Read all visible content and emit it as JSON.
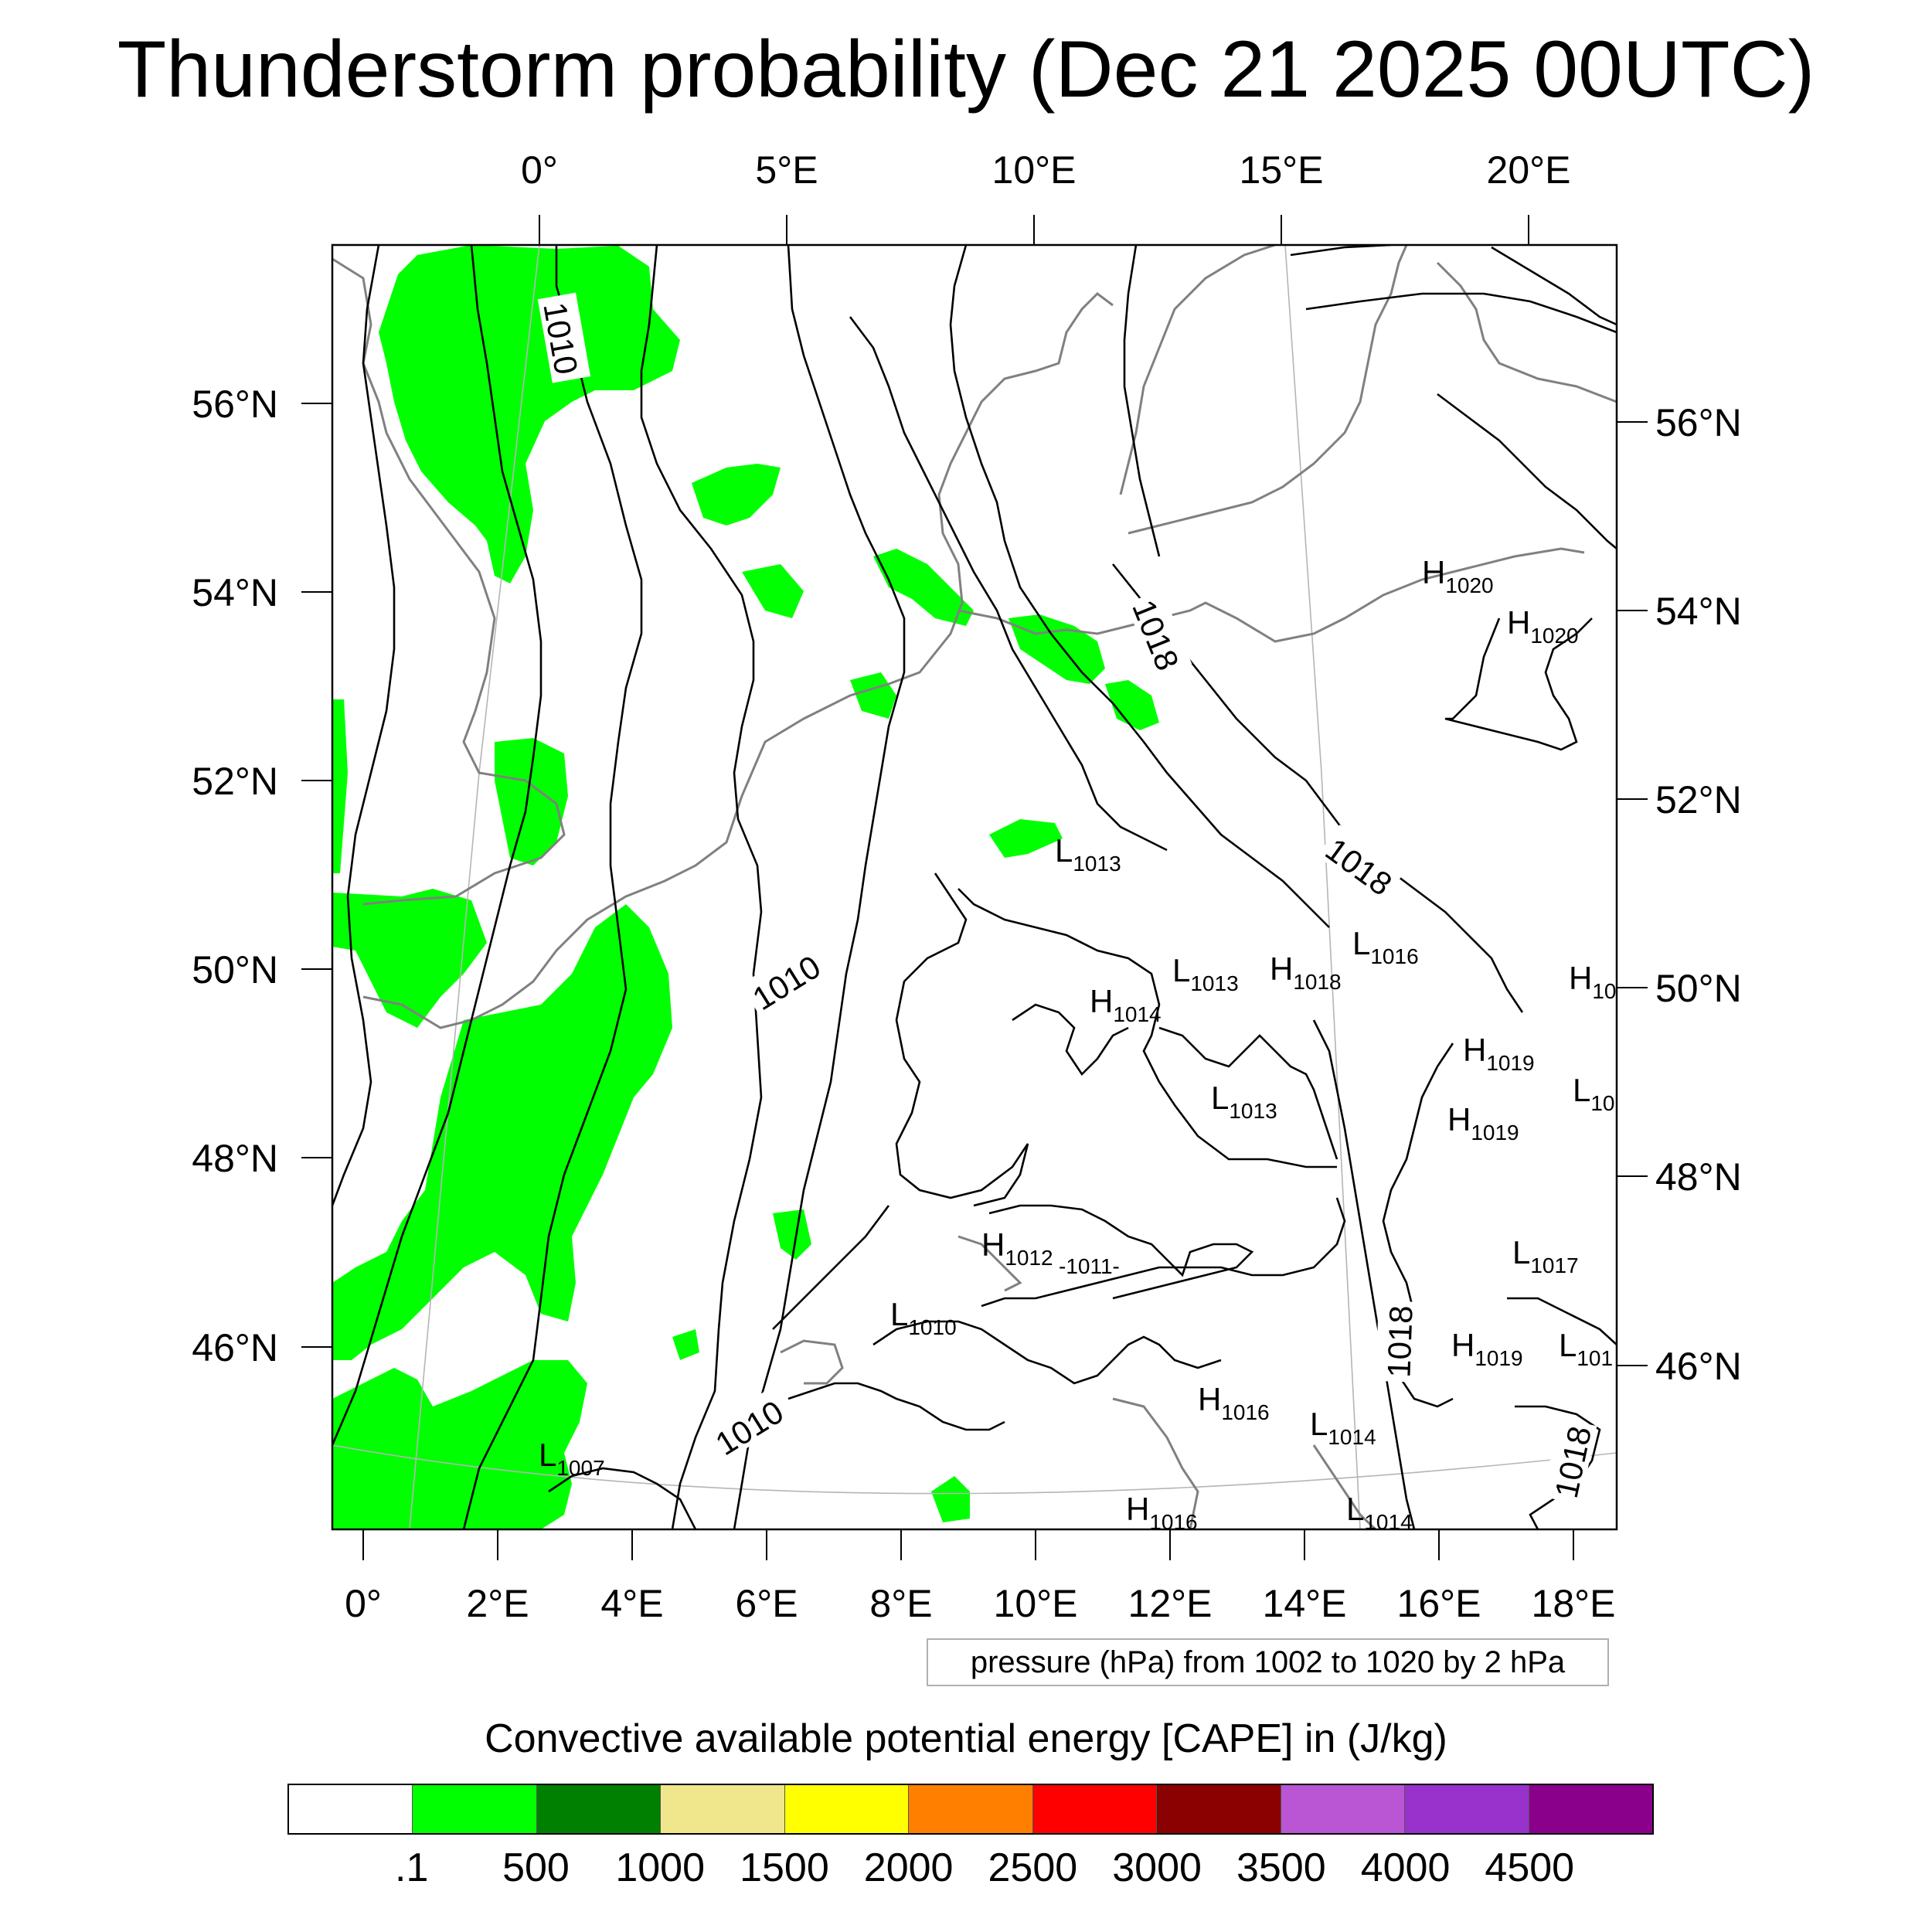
{
  "title": "Thunderstorm probability (Dec 21 2025 00UTC)",
  "top_lon_labels": [
    "0°",
    "5°E",
    "10°E",
    "15°E",
    "20°E"
  ],
  "left_lat_labels": [
    "56°N",
    "54°N",
    "52°N",
    "50°N",
    "48°N",
    "46°N"
  ],
  "right_lat_labels": [
    "56°N",
    "54°N",
    "52°N",
    "50°N",
    "48°N",
    "46°N"
  ],
  "bottom_lon_labels": [
    "0°",
    "2°E",
    "4°E",
    "6°E",
    "8°E",
    "10°E",
    "12°E",
    "14°E",
    "16°E",
    "18°E"
  ],
  "contour_labels": [
    "1010",
    "1018",
    "1018",
    "1010",
    "1010",
    "1018",
    "1018"
  ],
  "pressure_centers": [
    {
      "kind": "H",
      "value": "1020"
    },
    {
      "kind": "H",
      "value": "1020"
    },
    {
      "kind": "L",
      "value": "1013"
    },
    {
      "kind": "L",
      "value": "1013"
    },
    {
      "kind": "H",
      "value": "1018"
    },
    {
      "kind": "L",
      "value": "1016"
    },
    {
      "kind": "H",
      "value": "1014"
    },
    {
      "kind": "H",
      "value": "10"
    },
    {
      "kind": "H",
      "value": "1019"
    },
    {
      "kind": "L",
      "value": "1013"
    },
    {
      "kind": "L",
      "value": "10"
    },
    {
      "kind": "H",
      "value": "1019"
    },
    {
      "kind": "H",
      "value": "1012"
    },
    {
      "kind": "",
      "value": "-1011-"
    },
    {
      "kind": "L",
      "value": "1017"
    },
    {
      "kind": "L",
      "value": "1010"
    },
    {
      "kind": "H",
      "value": "1019"
    },
    {
      "kind": "L",
      "value": "101"
    },
    {
      "kind": "H",
      "value": "1016"
    },
    {
      "kind": "L",
      "value": "1014"
    },
    {
      "kind": "L",
      "value": "1007"
    },
    {
      "kind": "H",
      "value": "1016"
    },
    {
      "kind": "L",
      "value": "1014"
    }
  ],
  "info_box": "pressure (hPa) from 1002 to 1020 by 2 hPa",
  "colorbar": {
    "title": "Convective available potential energy [CAPE] in (J/kg)",
    "colors": [
      "#ffffff",
      "#00ff00",
      "#008000",
      "#f0e68c",
      "#ffff00",
      "#ff8000",
      "#ff0000",
      "#8b0000",
      "#ba55d3",
      "#9932cc",
      "#8b008b"
    ],
    "labels": [
      ".1",
      "500",
      "1000",
      "1500",
      "2000",
      "2500",
      "3000",
      "3500",
      "4000",
      "4500"
    ]
  }
}
